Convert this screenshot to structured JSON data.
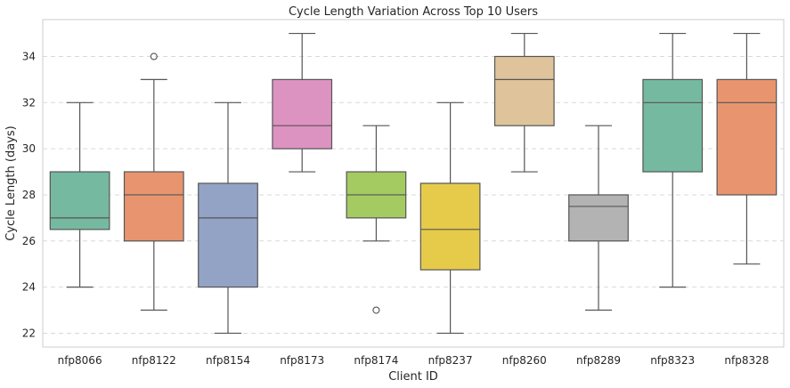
{
  "chart_data": {
    "type": "box",
    "title": "Cycle Length Variation Across Top 10 Users",
    "xlabel": "Client ID",
    "ylabel": "Cycle Length (days)",
    "ylim": [
      21.4,
      35.6
    ],
    "yticks": [
      22,
      24,
      26,
      28,
      30,
      32,
      34
    ],
    "grid": true,
    "categories": [
      "nfp8066",
      "nfp8122",
      "nfp8154",
      "nfp8173",
      "nfp8174",
      "nfp8237",
      "nfp8260",
      "nfp8289",
      "nfp8323",
      "nfp8328"
    ],
    "series": [
      {
        "category": "nfp8066",
        "color": "#76b9a1",
        "whisker_low": 24,
        "q1": 26.5,
        "median": 27,
        "q3": 29,
        "whisker_high": 32,
        "outliers": []
      },
      {
        "category": "nfp8122",
        "color": "#e8956f",
        "whisker_low": 23,
        "q1": 26,
        "median": 28,
        "q3": 29,
        "whisker_high": 33,
        "outliers": [
          34
        ]
      },
      {
        "category": "nfp8154",
        "color": "#93a3c5",
        "whisker_low": 22,
        "q1": 24,
        "median": 27,
        "q3": 28.5,
        "whisker_high": 32,
        "outliers": []
      },
      {
        "category": "nfp8173",
        "color": "#dc93c1",
        "whisker_low": 29,
        "q1": 30,
        "median": 31,
        "q3": 33,
        "whisker_high": 35,
        "outliers": []
      },
      {
        "category": "nfp8174",
        "color": "#a4cb62",
        "whisker_low": 26,
        "q1": 27,
        "median": 28,
        "q3": 29,
        "whisker_high": 31,
        "outliers": [
          23
        ]
      },
      {
        "category": "nfp8237",
        "color": "#e6cb4a",
        "whisker_low": 22,
        "q1": 24.75,
        "median": 26.5,
        "q3": 28.5,
        "whisker_high": 32,
        "outliers": []
      },
      {
        "category": "nfp8260",
        "color": "#dec39b",
        "whisker_low": 29,
        "q1": 31,
        "median": 33,
        "q3": 34,
        "whisker_high": 35,
        "outliers": []
      },
      {
        "category": "nfp8289",
        "color": "#b3b3b3",
        "whisker_low": 23,
        "q1": 26,
        "median": 27.5,
        "q3": 28,
        "whisker_high": 31,
        "outliers": []
      },
      {
        "category": "nfp8323",
        "color": "#76b9a1",
        "whisker_low": 24,
        "q1": 29,
        "median": 32,
        "q3": 33,
        "whisker_high": 35,
        "outliers": []
      },
      {
        "category": "nfp8328",
        "color": "#e8956f",
        "whisker_low": 25,
        "q1": 28,
        "median": 32,
        "q3": 33,
        "whisker_high": 35,
        "outliers": []
      }
    ]
  }
}
